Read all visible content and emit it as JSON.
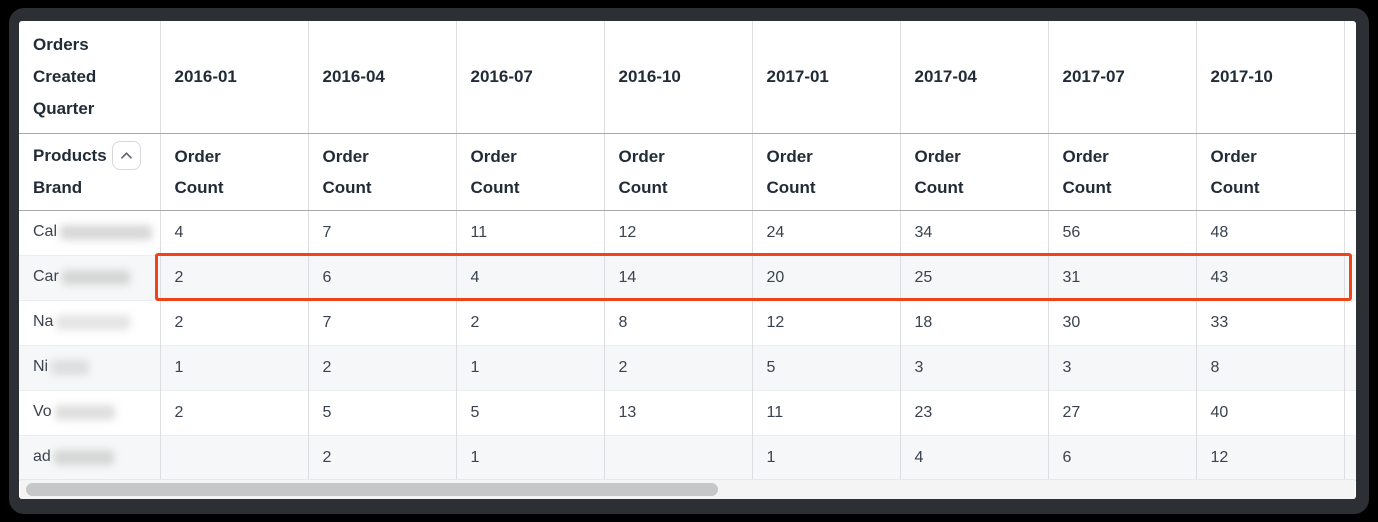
{
  "window": {
    "frame_color": "#2c3034",
    "canvas_color": "#000000"
  },
  "table": {
    "corner_header": "Orders Created Quarter",
    "row_dimension": {
      "line1": "Products",
      "line2": "Brand",
      "sort_icon": "chevron-up"
    },
    "measure_label": "Order Count",
    "quarters": [
      "2016-01",
      "2016-04",
      "2016-07",
      "2016-10",
      "2017-01",
      "2017-04",
      "2017-07",
      "2017-10"
    ],
    "rows": [
      {
        "label_prefix": "Cal",
        "label_blurred": true,
        "highlighted": false,
        "values": [
          "4",
          "7",
          "11",
          "12",
          "24",
          "34",
          "56",
          "48"
        ]
      },
      {
        "label_prefix": "Car",
        "label_blurred": true,
        "highlighted": true,
        "values": [
          "2",
          "6",
          "4",
          "14",
          "20",
          "25",
          "31",
          "43"
        ]
      },
      {
        "label_prefix": "Na",
        "label_blurred": true,
        "highlighted": false,
        "values": [
          "2",
          "7",
          "2",
          "8",
          "12",
          "18",
          "30",
          "33"
        ]
      },
      {
        "label_prefix": "Ni",
        "label_blurred": true,
        "highlighted": false,
        "values": [
          "1",
          "2",
          "1",
          "2",
          "5",
          "3",
          "3",
          "8"
        ]
      },
      {
        "label_prefix": "Vo",
        "label_blurred": true,
        "highlighted": false,
        "values": [
          "2",
          "5",
          "5",
          "13",
          "11",
          "23",
          "27",
          "40"
        ]
      },
      {
        "label_prefix": "ad",
        "label_blurred": true,
        "highlighted": false,
        "values": [
          "",
          "2",
          "1",
          "",
          "1",
          "4",
          "6",
          "12"
        ]
      }
    ],
    "highlight_color": "#f04318"
  },
  "scrollbar": {
    "orientation": "horizontal"
  }
}
